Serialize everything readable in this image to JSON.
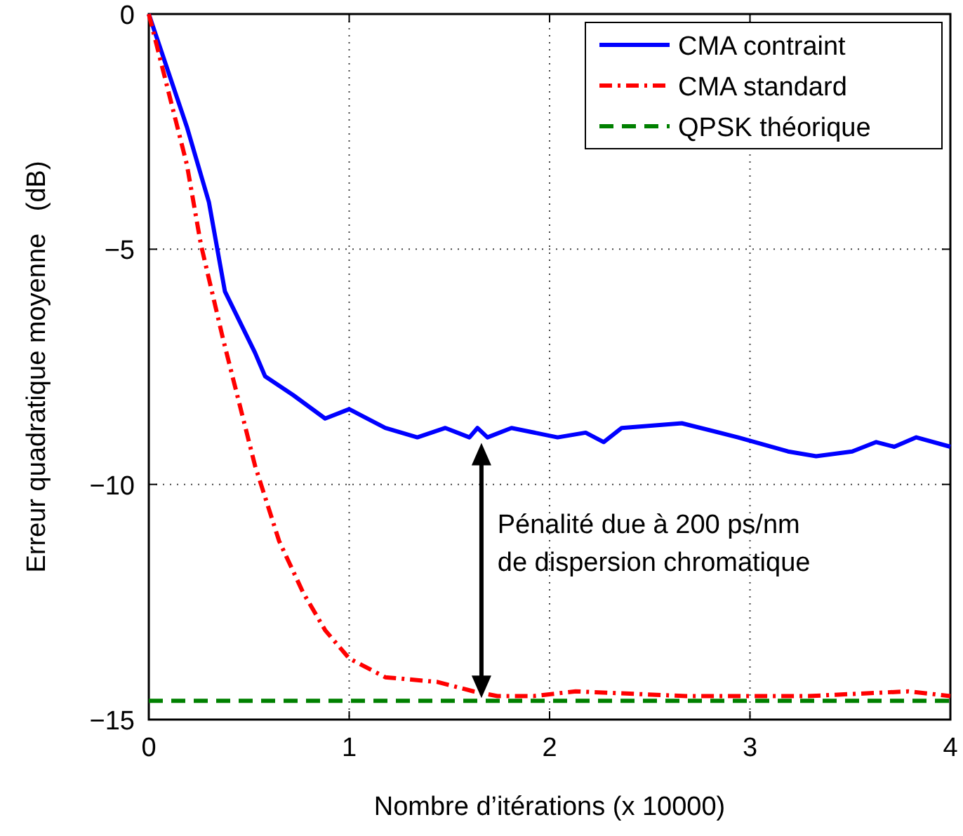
{
  "chart_data": {
    "type": "line",
    "xlabel": "Nombre d’itérations (x 10000)",
    "ylabel": "Erreur quadratique moyenne   (dB)",
    "xlim": [
      0,
      4
    ],
    "xticks": [
      0,
      1,
      2,
      3,
      4
    ],
    "ylim": [
      -15,
      0
    ],
    "yticks": [
      {
        "value": -15,
        "label": "−15"
      },
      {
        "value": -10,
        "label": "−10"
      },
      {
        "value": -5,
        "label": "−5"
      },
      0
    ],
    "grid": true,
    "legend": "top right",
    "series": [
      {
        "name": "CMA contraint",
        "color": "#0000ff",
        "line_style": "solid",
        "x": [
          0,
          0.19,
          0.3,
          0.38,
          0.53,
          0.58,
          0.72,
          0.88,
          1.0,
          1.18,
          1.34,
          1.48,
          1.6,
          1.64,
          1.69,
          1.81,
          2.04,
          2.18,
          2.27,
          2.36,
          2.66,
          2.94,
          3.19,
          3.33,
          3.51,
          3.63,
          3.72,
          3.83,
          4.0
        ],
        "values": [
          0,
          -2.4,
          -4.0,
          -5.9,
          -7.2,
          -7.7,
          -8.1,
          -8.6,
          -8.4,
          -8.8,
          -9.0,
          -8.8,
          -9.0,
          -8.8,
          -9.0,
          -8.8,
          -9.0,
          -8.9,
          -9.1,
          -8.8,
          -8.7,
          -9.0,
          -9.3,
          -9.4,
          -9.3,
          -9.1,
          -9.2,
          -9.0,
          -9.2
        ]
      },
      {
        "name": "CMA standard",
        "color": "#ff0000",
        "line_style": "dashdot",
        "x": [
          0,
          0.19,
          0.26,
          0.37,
          0.53,
          0.65,
          0.77,
          0.88,
          1.0,
          1.18,
          1.44,
          1.62,
          1.74,
          1.92,
          2.13,
          2.68,
          3.29,
          3.79,
          4.0
        ],
        "values": [
          0,
          -3.2,
          -4.9,
          -6.9,
          -9.6,
          -11.2,
          -12.3,
          -13.1,
          -13.7,
          -14.1,
          -14.2,
          -14.4,
          -14.5,
          -14.5,
          -14.4,
          -14.5,
          -14.5,
          -14.4,
          -14.5
        ]
      },
      {
        "name": "QPSK théorique",
        "color": "#008000",
        "line_style": "dashed",
        "x": [
          0,
          4
        ],
        "values": [
          -14.6,
          -14.6
        ]
      }
    ],
    "annotations": [
      "Pénalité due à 200 ps/nm\nde dispersion chromatique"
    ]
  }
}
